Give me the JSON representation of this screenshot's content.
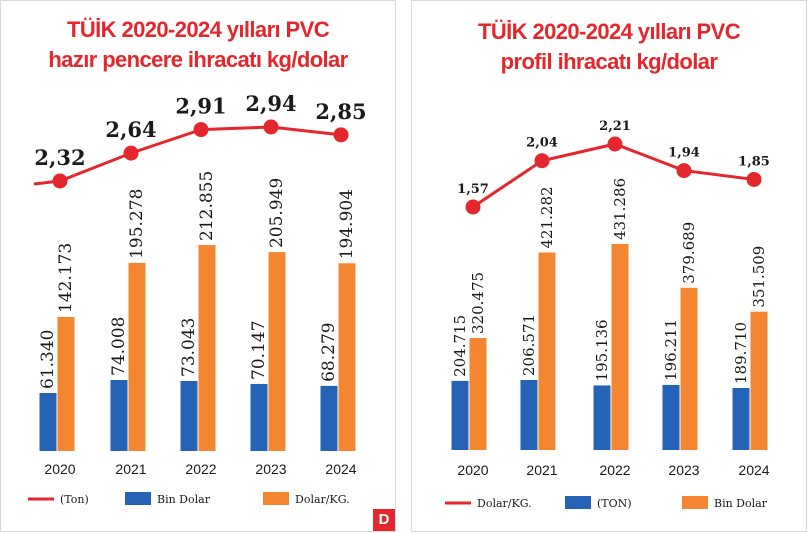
{
  "colors": {
    "title": "#e4262d",
    "line": "#e4262d",
    "blue": "#2463b6",
    "orange": "#f58631"
  },
  "chart_data": [
    {
      "type": "bar",
      "title_lines": [
        "TÜİK 2020-2024 yılları PVC",
        "hazır pencere ihracatı kg/dolar"
      ],
      "categories": [
        "2020",
        "2021",
        "2022",
        "2023",
        "2024"
      ],
      "legend": [
        {
          "label": "(Ton)",
          "swatch": "line"
        },
        {
          "label": "Bin Dolar",
          "swatch": "blue"
        },
        {
          "label": "Dolar/KG.",
          "swatch": "orange"
        }
      ],
      "line_series": {
        "values": [
          2.32,
          2.64,
          2.91,
          2.94,
          2.85
        ],
        "labels": [
          "2,32",
          "2,64",
          "2,91",
          "2,94",
          "2,85"
        ]
      },
      "bar_series": [
        {
          "color": "blue",
          "values": [
            61340,
            74008,
            73043,
            70147,
            68279
          ],
          "labels": [
            "61.340",
            "74.008",
            "73.043",
            "70.147",
            "68.279"
          ]
        },
        {
          "color": "orange",
          "values": [
            142173,
            195278,
            212855,
            205949,
            194904
          ],
          "labels": [
            "142.173",
            "195.278",
            "212.855",
            "205.949",
            "194.904"
          ]
        }
      ],
      "logo_text": "D"
    },
    {
      "type": "bar",
      "title_lines": [
        "TÜİK 2020-2024 yılları PVC",
        "profil ihracatı kg/dolar"
      ],
      "categories": [
        "2020",
        "2021",
        "2022",
        "2023",
        "2024"
      ],
      "legend": [
        {
          "label": "Dolar/KG.",
          "swatch": "line"
        },
        {
          "label": "(TON)",
          "swatch": "blue"
        },
        {
          "label": "Bin Dolar",
          "swatch": "orange"
        }
      ],
      "line_series": {
        "values": [
          1.57,
          2.04,
          2.21,
          1.94,
          1.85
        ],
        "labels": [
          "1,57",
          "2,04",
          "2,21",
          "1,94",
          "1,85"
        ]
      },
      "bar_series": [
        {
          "color": "blue",
          "values": [
            204715,
            206571,
            195136,
            196211,
            189710
          ],
          "labels": [
            "204.715",
            "206.571",
            "195.136",
            "196.211",
            "189.710"
          ]
        },
        {
          "color": "orange",
          "values": [
            320475,
            421282,
            431286,
            379689,
            351509
          ],
          "labels": [
            "320.475",
            "421.282",
            "431.286",
            "379.689",
            "351.509"
          ]
        }
      ]
    }
  ]
}
